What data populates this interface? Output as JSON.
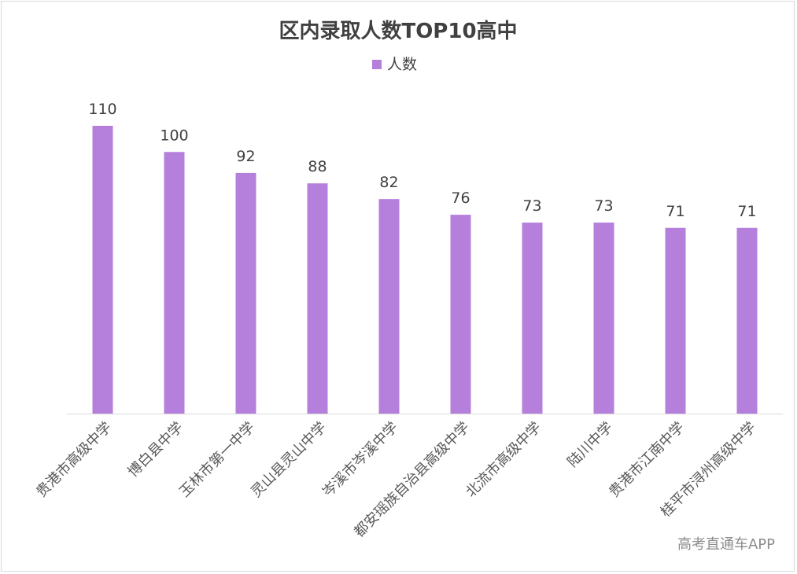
{
  "chart_data": {
    "type": "bar",
    "title": "区内录取人数TOP10高中",
    "legend": {
      "position": "top",
      "entries": [
        "人数"
      ]
    },
    "categories": [
      "贵港市高级中学",
      "博白县中学",
      "玉林市第一中学",
      "灵山县灵山中学",
      "岑溪市岑溪中学",
      "都安瑶族自治县高级中学",
      "北流市高级中学",
      "陆川中学",
      "贵港市江南中学",
      "桂平市浔州高级中学"
    ],
    "series": [
      {
        "name": "人数",
        "values": [
          110,
          100,
          92,
          88,
          82,
          76,
          73,
          73,
          71,
          71
        ]
      }
    ],
    "data_labels": [
      "110",
      "100",
      "92",
      "88",
      "82",
      "76",
      "73",
      "73",
      "71",
      "71"
    ],
    "ylim": [
      0,
      110
    ],
    "grid": false,
    "colors": {
      "bar": "#b57fdc",
      "text": "#404040",
      "axis": "#d9d9d9"
    }
  },
  "watermark": "高考直通车APP"
}
